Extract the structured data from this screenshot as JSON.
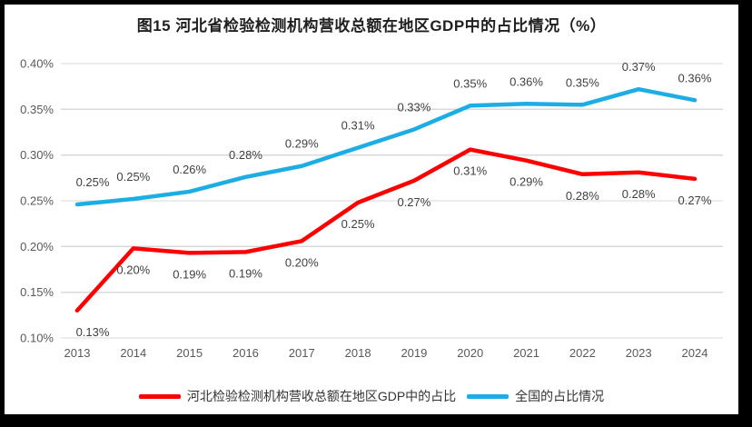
{
  "frame": {
    "border_color": "#000000",
    "canvas_background": "#ffffff"
  },
  "colors": {
    "gridline": "#d9d9d9",
    "axis_text": "#595959",
    "data_label_text": "#404040",
    "title_text": "#1f1f1f",
    "series_red": "#fe0000",
    "series_blue": "#1cade4"
  },
  "chart_data": {
    "type": "line",
    "title": "图15 河北省检验检测机构营收总额在地区GDP中的占比情况（%）",
    "xlabel": "",
    "ylabel": "",
    "categories": [
      "2013",
      "2014",
      "2015",
      "2016",
      "2017",
      "2018",
      "2019",
      "2020",
      "2021",
      "2022",
      "2023",
      "2024"
    ],
    "y_axis": {
      "min": 0.1,
      "max": 0.4,
      "step": 0.05,
      "tick_labels": [
        "0.40%",
        "0.35%",
        "0.30%",
        "0.25%",
        "0.20%",
        "0.15%",
        "0.10%"
      ],
      "unit": "percent"
    },
    "grid": true,
    "legend_position": "bottom",
    "series": [
      {
        "id": "hebei",
        "name": "河北检验检测机构营收总额在地区GDP中的占比",
        "color": "#fe0000",
        "values": [
          0.13,
          0.2,
          0.19,
          0.19,
          0.2,
          0.25,
          0.27,
          0.31,
          0.29,
          0.28,
          0.28,
          0.27
        ],
        "labels": [
          "0.13%",
          "0.20%",
          "0.19%",
          "0.19%",
          "0.20%",
          "0.25%",
          "0.27%",
          "0.31%",
          "0.29%",
          "0.28%",
          "0.28%",
          "0.27%"
        ],
        "plot_values": [
          0.13,
          0.198,
          0.193,
          0.194,
          0.206,
          0.248,
          0.272,
          0.306,
          0.294,
          0.279,
          0.281,
          0.274
        ],
        "label_placement": "below"
      },
      {
        "id": "national",
        "name": "全国的占比情况",
        "color": "#1cade4",
        "values": [
          0.25,
          0.25,
          0.26,
          0.28,
          0.29,
          0.31,
          0.33,
          0.35,
          0.36,
          0.35,
          0.37,
          0.36
        ],
        "labels": [
          "0.25%",
          "0.25%",
          "0.26%",
          "0.28%",
          "0.29%",
          "0.31%",
          "0.33%",
          "0.35%",
          "0.36%",
          "0.35%",
          "0.37%",
          "0.36%"
        ],
        "plot_values": [
          0.246,
          0.252,
          0.26,
          0.276,
          0.288,
          0.308,
          0.328,
          0.354,
          0.356,
          0.355,
          0.372,
          0.36
        ],
        "label_placement": "above"
      }
    ]
  }
}
